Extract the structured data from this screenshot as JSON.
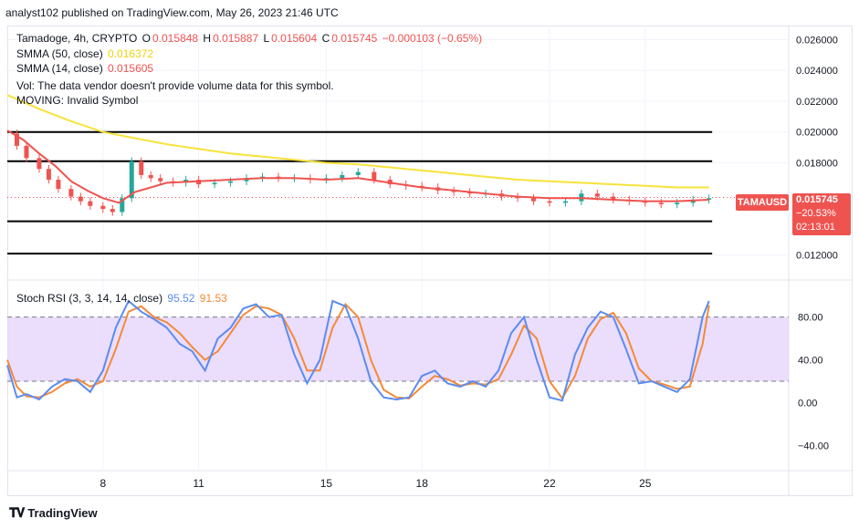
{
  "header": {
    "published": "analyst102 published on TradingView.com, May 26, 2023 21:46 UTC"
  },
  "legend": {
    "symbol": "Tamadoge, 4h, CRYPTO",
    "open_label": "O",
    "open": "0.015848",
    "high_label": "H",
    "high": "0.015887",
    "low_label": "L",
    "low": "0.015604",
    "close_label": "C",
    "close": "0.015745",
    "change": "−0.000103 (−0.65%)",
    "sma50_label": "SMMA (50, close)",
    "sma50_value": "0.016372",
    "sma14_label": "SMMA (14, close)",
    "sma14_value": "0.015605",
    "vol_text": "Vol: The data vendor doesn't provide volume data for this symbol.",
    "moving_text": "MOVING: Invalid Symbol",
    "rsi_label": "Stoch RSI (3, 3, 14, 14, close)",
    "rsi_k": "95.52",
    "rsi_d": "91.53"
  },
  "price_tag": {
    "ticker": "TAMAUSD",
    "price": "0.015745",
    "change": "−20.53%",
    "countdown": "02:13:01"
  },
  "colors": {
    "up": "#26a69a",
    "down": "#ef5350",
    "sma50": "#f7e33a",
    "sma14": "#ef5350",
    "rsi_k": "#5b8cf0",
    "rsi_d": "#f48a38",
    "rsi_band": "#e8d7fb"
  },
  "footer": {
    "brand": "TradingView",
    "logo_icon": "tradingview-logo-icon"
  },
  "chart_data": [
    {
      "type": "line",
      "title": "Tamadoge, 4h, CRYPTO",
      "price_axis_ticks": [
        "0.026000",
        "0.024000",
        "0.022000",
        "0.020000",
        "0.018000",
        "0.012000"
      ],
      "time_axis_ticks": [
        "8",
        "11",
        "15",
        "18",
        "22",
        "25"
      ],
      "ylim": [
        0.0105,
        0.0268
      ],
      "x_range": [
        5.0,
        29.5
      ],
      "horizontal_levels": [
        0.02,
        0.0181,
        0.0142,
        0.0121
      ],
      "current_price": 0.015745,
      "grid": true,
      "series": [
        {
          "name": "SMMA (50, close)",
          "x": [
            5,
            6,
            7,
            8,
            9,
            10,
            11,
            12,
            13,
            14,
            15,
            16,
            17,
            18,
            19,
            20,
            21,
            22,
            23,
            24,
            25,
            26,
            27
          ],
          "values": [
            0.0224,
            0.0215,
            0.0207,
            0.02,
            0.0196,
            0.0192,
            0.0189,
            0.0186,
            0.0184,
            0.0182,
            0.018,
            0.0179,
            0.0177,
            0.0175,
            0.0173,
            0.0171,
            0.0169,
            0.0168,
            0.0167,
            0.0166,
            0.0165,
            0.0164,
            0.0164
          ]
        },
        {
          "name": "SMMA (14, close)",
          "x": [
            5,
            5.5,
            6,
            6.5,
            7,
            7.5,
            8,
            8.5,
            9,
            10,
            11,
            12,
            13,
            14,
            15,
            16,
            17,
            18,
            19,
            20,
            21,
            22,
            23,
            24,
            25,
            26,
            27
          ],
          "values": [
            0.0201,
            0.0195,
            0.0186,
            0.0178,
            0.0168,
            0.0162,
            0.0157,
            0.0154,
            0.0161,
            0.0167,
            0.0168,
            0.0169,
            0.017,
            0.017,
            0.0169,
            0.017,
            0.0167,
            0.0164,
            0.0162,
            0.016,
            0.0158,
            0.0157,
            0.0157,
            0.0156,
            0.0155,
            0.0155,
            0.0156
          ]
        },
        {
          "name": "Price",
          "x": [
            5,
            5.3,
            5.6,
            6,
            6.3,
            6.6,
            7,
            7.3,
            7.6,
            8,
            8.3,
            8.6,
            8.9,
            9.2,
            9.5,
            9.8,
            10.2,
            10.6,
            11,
            11.5,
            12,
            12.5,
            13,
            13.5,
            14,
            14.5,
            15,
            15.5,
            16,
            16.5,
            17,
            17.5,
            18,
            18.5,
            19,
            19.5,
            20,
            20.5,
            21,
            21.5,
            22,
            22.5,
            23,
            23.5,
            24,
            24.5,
            25,
            25.5,
            26,
            26.5,
            27
          ],
          "values": [
            0.0199,
            0.0191,
            0.0183,
            0.0176,
            0.0169,
            0.0163,
            0.0158,
            0.0155,
            0.0152,
            0.015,
            0.0148,
            0.0157,
            0.0181,
            0.0172,
            0.017,
            0.0168,
            0.0167,
            0.0169,
            0.0166,
            0.0167,
            0.0168,
            0.017,
            0.0171,
            0.017,
            0.017,
            0.0169,
            0.017,
            0.0172,
            0.0174,
            0.0169,
            0.0166,
            0.0165,
            0.0164,
            0.0162,
            0.0161,
            0.016,
            0.016,
            0.0158,
            0.0157,
            0.0155,
            0.0154,
            0.0155,
            0.016,
            0.0158,
            0.0156,
            0.0155,
            0.0154,
            0.0153,
            0.0154,
            0.0156,
            0.0157
          ]
        }
      ]
    },
    {
      "type": "line",
      "title": "Stoch RSI (3, 3, 14, 14, close)",
      "y_ticks": [
        "80.00",
        "40.00",
        "0.00",
        "−40.00"
      ],
      "ylim": [
        -60,
        112
      ],
      "band": [
        20,
        80
      ],
      "series": [
        {
          "name": "K",
          "x": [
            5,
            5.3,
            5.6,
            6,
            6.4,
            6.8,
            7.2,
            7.6,
            8,
            8.4,
            8.8,
            9.2,
            9.6,
            10,
            10.4,
            10.8,
            11.2,
            11.6,
            12,
            12.4,
            12.8,
            13.2,
            13.6,
            14,
            14.4,
            14.8,
            15.2,
            15.6,
            16,
            16.4,
            16.8,
            17.2,
            17.6,
            18,
            18.4,
            18.8,
            19.2,
            19.6,
            20,
            20.4,
            20.8,
            21.2,
            21.6,
            22,
            22.4,
            22.8,
            23.2,
            23.6,
            24,
            24.4,
            24.8,
            25.2,
            25.6,
            26,
            26.4,
            26.8,
            27
          ],
          "values": [
            35,
            5,
            8,
            3,
            15,
            22,
            20,
            10,
            30,
            70,
            95,
            85,
            78,
            70,
            55,
            48,
            30,
            60,
            70,
            88,
            92,
            80,
            82,
            45,
            18,
            40,
            95,
            90,
            60,
            20,
            5,
            3,
            5,
            25,
            30,
            18,
            15,
            20,
            15,
            30,
            65,
            80,
            40,
            5,
            2,
            45,
            70,
            85,
            80,
            50,
            18,
            20,
            15,
            10,
            22,
            80,
            95
          ]
        },
        {
          "name": "D",
          "x": [
            5,
            5.3,
            5.6,
            6,
            6.4,
            6.8,
            7.2,
            7.6,
            8,
            8.4,
            8.8,
            9.2,
            9.6,
            10,
            10.4,
            10.8,
            11.2,
            11.6,
            12,
            12.4,
            12.8,
            13.2,
            13.6,
            14,
            14.4,
            14.8,
            15.2,
            15.6,
            16,
            16.4,
            16.8,
            17.2,
            17.6,
            18,
            18.4,
            18.8,
            19.2,
            19.6,
            20,
            20.4,
            20.8,
            21.2,
            21.6,
            22,
            22.4,
            22.8,
            23.2,
            23.6,
            24,
            24.4,
            24.8,
            25.2,
            25.6,
            26,
            26.4,
            26.8,
            27
          ],
          "values": [
            40,
            15,
            6,
            5,
            10,
            18,
            22,
            15,
            20,
            50,
            85,
            90,
            80,
            75,
            65,
            52,
            40,
            48,
            65,
            82,
            90,
            88,
            82,
            60,
            30,
            30,
            70,
            92,
            80,
            40,
            12,
            5,
            4,
            15,
            25,
            22,
            16,
            18,
            17,
            22,
            45,
            72,
            60,
            20,
            4,
            25,
            60,
            78,
            84,
            65,
            32,
            20,
            17,
            13,
            15,
            55,
            91
          ]
        }
      ]
    }
  ]
}
